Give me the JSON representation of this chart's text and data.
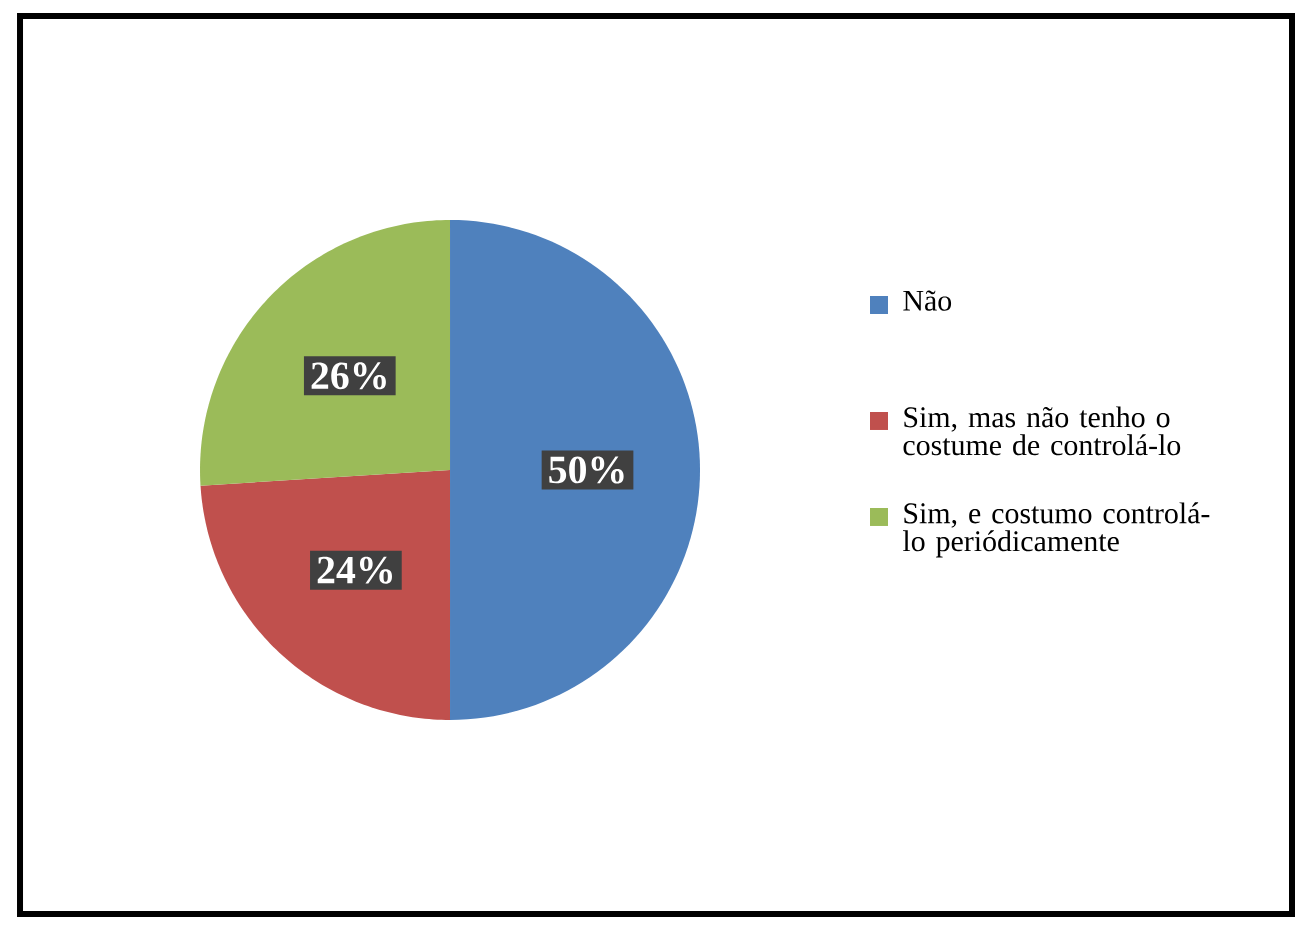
{
  "chart_data": {
    "type": "pie",
    "categories": [
      "Não",
      "Sim, mas não tenho o costume de controlá-lo",
      "Sim, e costumo controlá-lo periódicamente"
    ],
    "values": [
      50,
      24,
      26
    ],
    "colors": [
      "#4f81bd",
      "#c0504d",
      "#9bbb59"
    ],
    "value_labels": [
      "50%",
      "24%",
      "26%"
    ],
    "legend": "right"
  }
}
